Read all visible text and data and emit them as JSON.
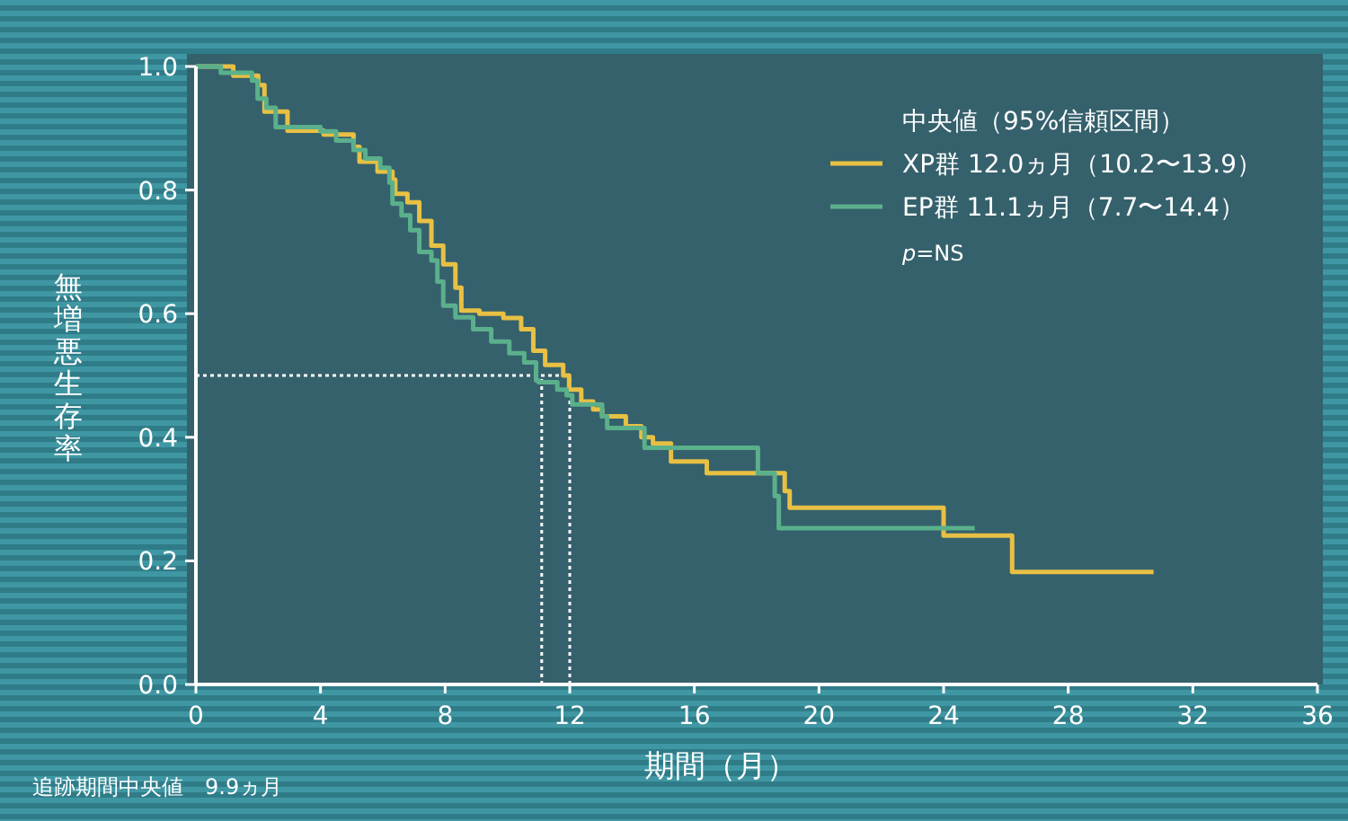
{
  "chart_data": {
    "type": "step",
    "xlabel": "期間（月）",
    "ylabel": "無増悪生存率",
    "legend_title": "中央値（95%信頼区間）",
    "legend": "top right",
    "xlim": [
      0,
      36
    ],
    "ylim": [
      0,
      1
    ],
    "xticks": [
      0,
      4,
      8,
      12,
      16,
      20,
      24,
      28,
      32,
      36
    ],
    "yticks": [
      {
        "value": 0,
        "label": "0.0"
      },
      {
        "value": 0.2,
        "label": "0.2"
      },
      {
        "value": 0.4,
        "label": "0.4"
      },
      {
        "value": 0.6,
        "label": "0.6"
      },
      {
        "value": 0.8,
        "label": "0.8"
      },
      {
        "value": 1,
        "label": "1.0"
      }
    ],
    "series": [
      {
        "name": "XP群 12.0ヵ月（10.2〜13.9）",
        "color": "#e8c044",
        "x": [
          0,
          1.2,
          2.0,
          2.2,
          2.94,
          4.1,
          5.06,
          5.25,
          5.83,
          6.31,
          6.4,
          6.79,
          7.17,
          7.56,
          7.94,
          8.33,
          8.52,
          9.1,
          9.87,
          10.44,
          10.83,
          11.21,
          11.79,
          11.98,
          12.37,
          12.75,
          13.04,
          13.8,
          14.3,
          14.67,
          15.25,
          16.4,
          18.9,
          19.06,
          24.0,
          26.2,
          30.74
        ],
        "values": [
          1,
          0.985,
          0.97,
          0.927,
          0.896,
          0.89,
          0.87,
          0.846,
          0.83,
          0.817,
          0.794,
          0.78,
          0.75,
          0.71,
          0.68,
          0.642,
          0.605,
          0.6,
          0.593,
          0.575,
          0.54,
          0.517,
          0.5,
          0.477,
          0.458,
          0.445,
          0.434,
          0.418,
          0.4,
          0.39,
          0.361,
          0.342,
          0.313,
          0.286,
          0.241,
          0.182,
          0.182
        ]
      },
      {
        "name": "EP群 11.1ヵ月（7.7〜14.4）",
        "color": "#5bb08c",
        "x": [
          0,
          0.8,
          1.8,
          1.98,
          2.26,
          2.56,
          4.0,
          4.5,
          5.06,
          5.44,
          5.92,
          6.21,
          6.31,
          6.6,
          6.88,
          7.17,
          7.56,
          7.75,
          7.94,
          8.33,
          8.9,
          9.48,
          10.06,
          10.54,
          10.92,
          11.0,
          11.6,
          11.9,
          12.08,
          13.04,
          13.2,
          14.4,
          18.04,
          18.58,
          18.71,
          25.0
        ],
        "values": [
          1,
          0.99,
          0.977,
          0.948,
          0.933,
          0.902,
          0.895,
          0.88,
          0.865,
          0.851,
          0.836,
          0.812,
          0.778,
          0.759,
          0.735,
          0.7,
          0.686,
          0.652,
          0.613,
          0.594,
          0.575,
          0.555,
          0.536,
          0.521,
          0.492,
          0.489,
          0.477,
          0.468,
          0.453,
          0.434,
          0.415,
          0.383,
          0.342,
          0.305,
          0.253,
          0.253
        ]
      }
    ],
    "ref_lines": [
      {
        "axis": "y",
        "value": 0.5,
        "color": "#ffffff",
        "line_style": "dotted"
      },
      {
        "axis": "x",
        "value": 11.1,
        "color": "#ffffff",
        "line_style": "dotted"
      },
      {
        "axis": "x",
        "value": 12.0,
        "color": "#ffffff",
        "line_style": "dotted"
      }
    ],
    "annotations": [
      "*p*=NS",
      "追跡期間中央値　9.9ヵ月"
    ]
  }
}
